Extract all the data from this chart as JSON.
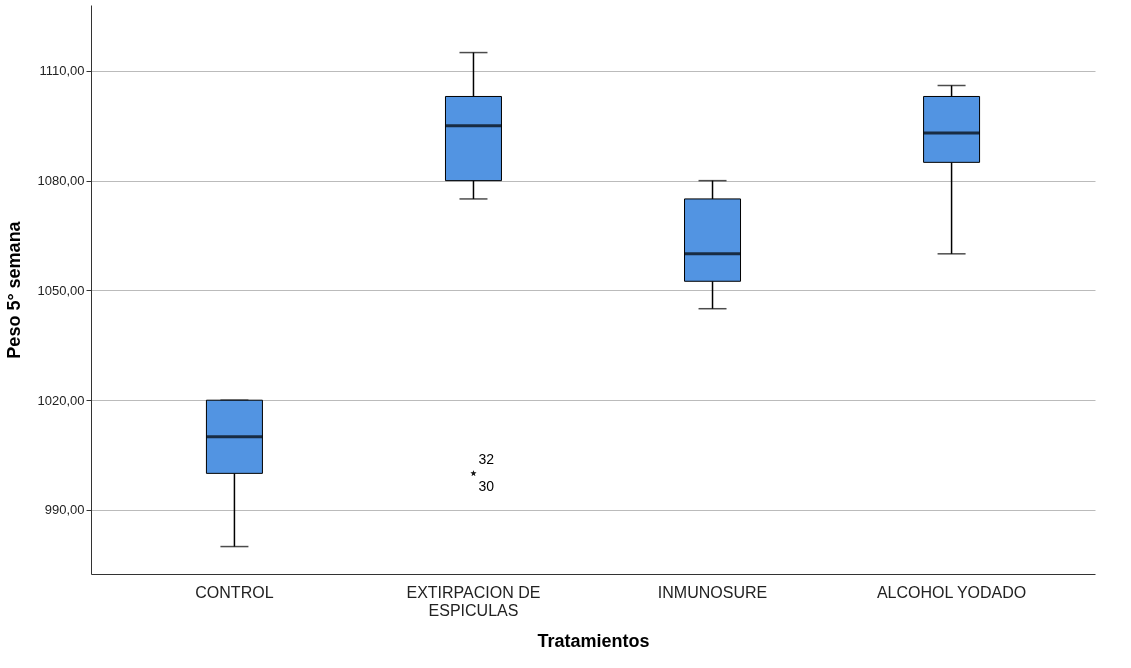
{
  "chart_data": {
    "type": "box",
    "xlabel": "Tratamientos",
    "ylabel": "Peso 5° semana",
    "categories": [
      "CONTROL",
      "EXTIRPACION DE\nESPICULAS",
      "INMUNOSURE",
      "ALCOHOL YODADO"
    ],
    "color": "#5294e2",
    "boxes": [
      {
        "low": 980,
        "q1": 1000,
        "median": 1010,
        "q3": 1020,
        "high": 1020
      },
      {
        "low": 1075,
        "q1": 1080,
        "median": 1095,
        "q3": 1103,
        "high": 1115,
        "outliers": [
          1000,
          1000
        ]
      },
      {
        "low": 1045,
        "q1": 1052.5,
        "median": 1060,
        "q3": 1075,
        "high": 1080
      },
      {
        "low": 1060,
        "q1": 1085,
        "median": 1093,
        "q3": 1103,
        "high": 1106
      }
    ],
    "marker": "star",
    "annotations": [
      "32",
      "30"
    ],
    "ylim": [
      972.5,
      1128
    ],
    "yticks": [
      {
        "value": 990,
        "label": "990,00"
      },
      {
        "value": 1020,
        "label": "1020,00"
      },
      {
        "value": 1050,
        "label": "1050,00"
      },
      {
        "value": 1080,
        "label": "1080,00"
      },
      {
        "value": 1110,
        "label": "1110,00"
      }
    ],
    "grid": "y"
  }
}
